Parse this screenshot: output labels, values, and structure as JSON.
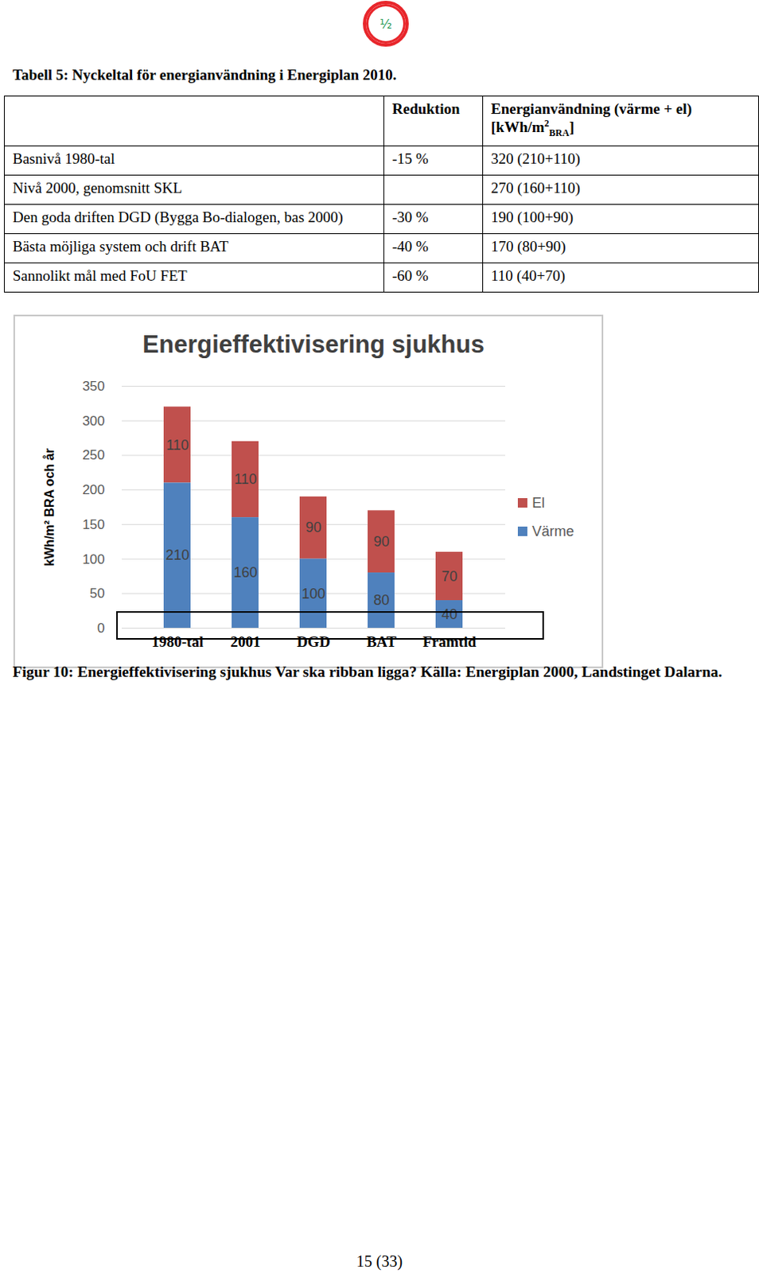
{
  "badge": "½",
  "table_caption": "Tabell 5: Nyckeltal för energianvändning i Energiplan 2010.",
  "table": {
    "header": [
      null,
      "Reduktion",
      {
        "text": "Energianvändning (värme + el)",
        "unit_pre": "[kWh/m",
        "unit_sup": "2",
        "unit_sub": "BRA",
        "unit_post": "]"
      }
    ],
    "rows": [
      [
        "Basnivå 1980-tal",
        "-15 %",
        "320 (210+110)"
      ],
      [
        "Nivå 2000, genomsnitt SKL",
        null,
        "270 (160+110)"
      ],
      [
        "Den goda driften DGD (Bygga Bo-dialogen, bas 2000)",
        "-30 %",
        "190 (100+90)"
      ],
      [
        "Bästa möjliga system och drift BAT",
        "-40 %",
        "170 (80+90)"
      ],
      [
        "Sannolikt mål med FoU FET",
        "-60 %",
        "110 (40+70)"
      ]
    ]
  },
  "chart_data": {
    "type": "bar",
    "stacked": true,
    "title": "Energieffektivisering sjukhus",
    "ylabel": "kWh/m² BRA och år",
    "categories": [
      "1980-tal",
      "2001",
      "DGD",
      "BAT",
      "Framtid"
    ],
    "series": [
      {
        "name": "El",
        "color": "#c0504d",
        "values": [
          110,
          110,
          90,
          90,
          70
        ]
      },
      {
        "name": "Värme",
        "color": "#4f81bd",
        "values": [
          210,
          160,
          100,
          80,
          40
        ]
      }
    ],
    "ylim": [
      0,
      350
    ],
    "yticks": [
      0,
      50,
      100,
      150,
      200,
      250,
      300,
      350
    ],
    "grid": true,
    "legend": "right",
    "data_labels": true
  },
  "figure_caption": "Figur 10: Energieffektivisering sjukhus Var ska ribban ligga? Källa: Energiplan 2000, Landstinget Dalarna.",
  "page_number": "15 (33)"
}
